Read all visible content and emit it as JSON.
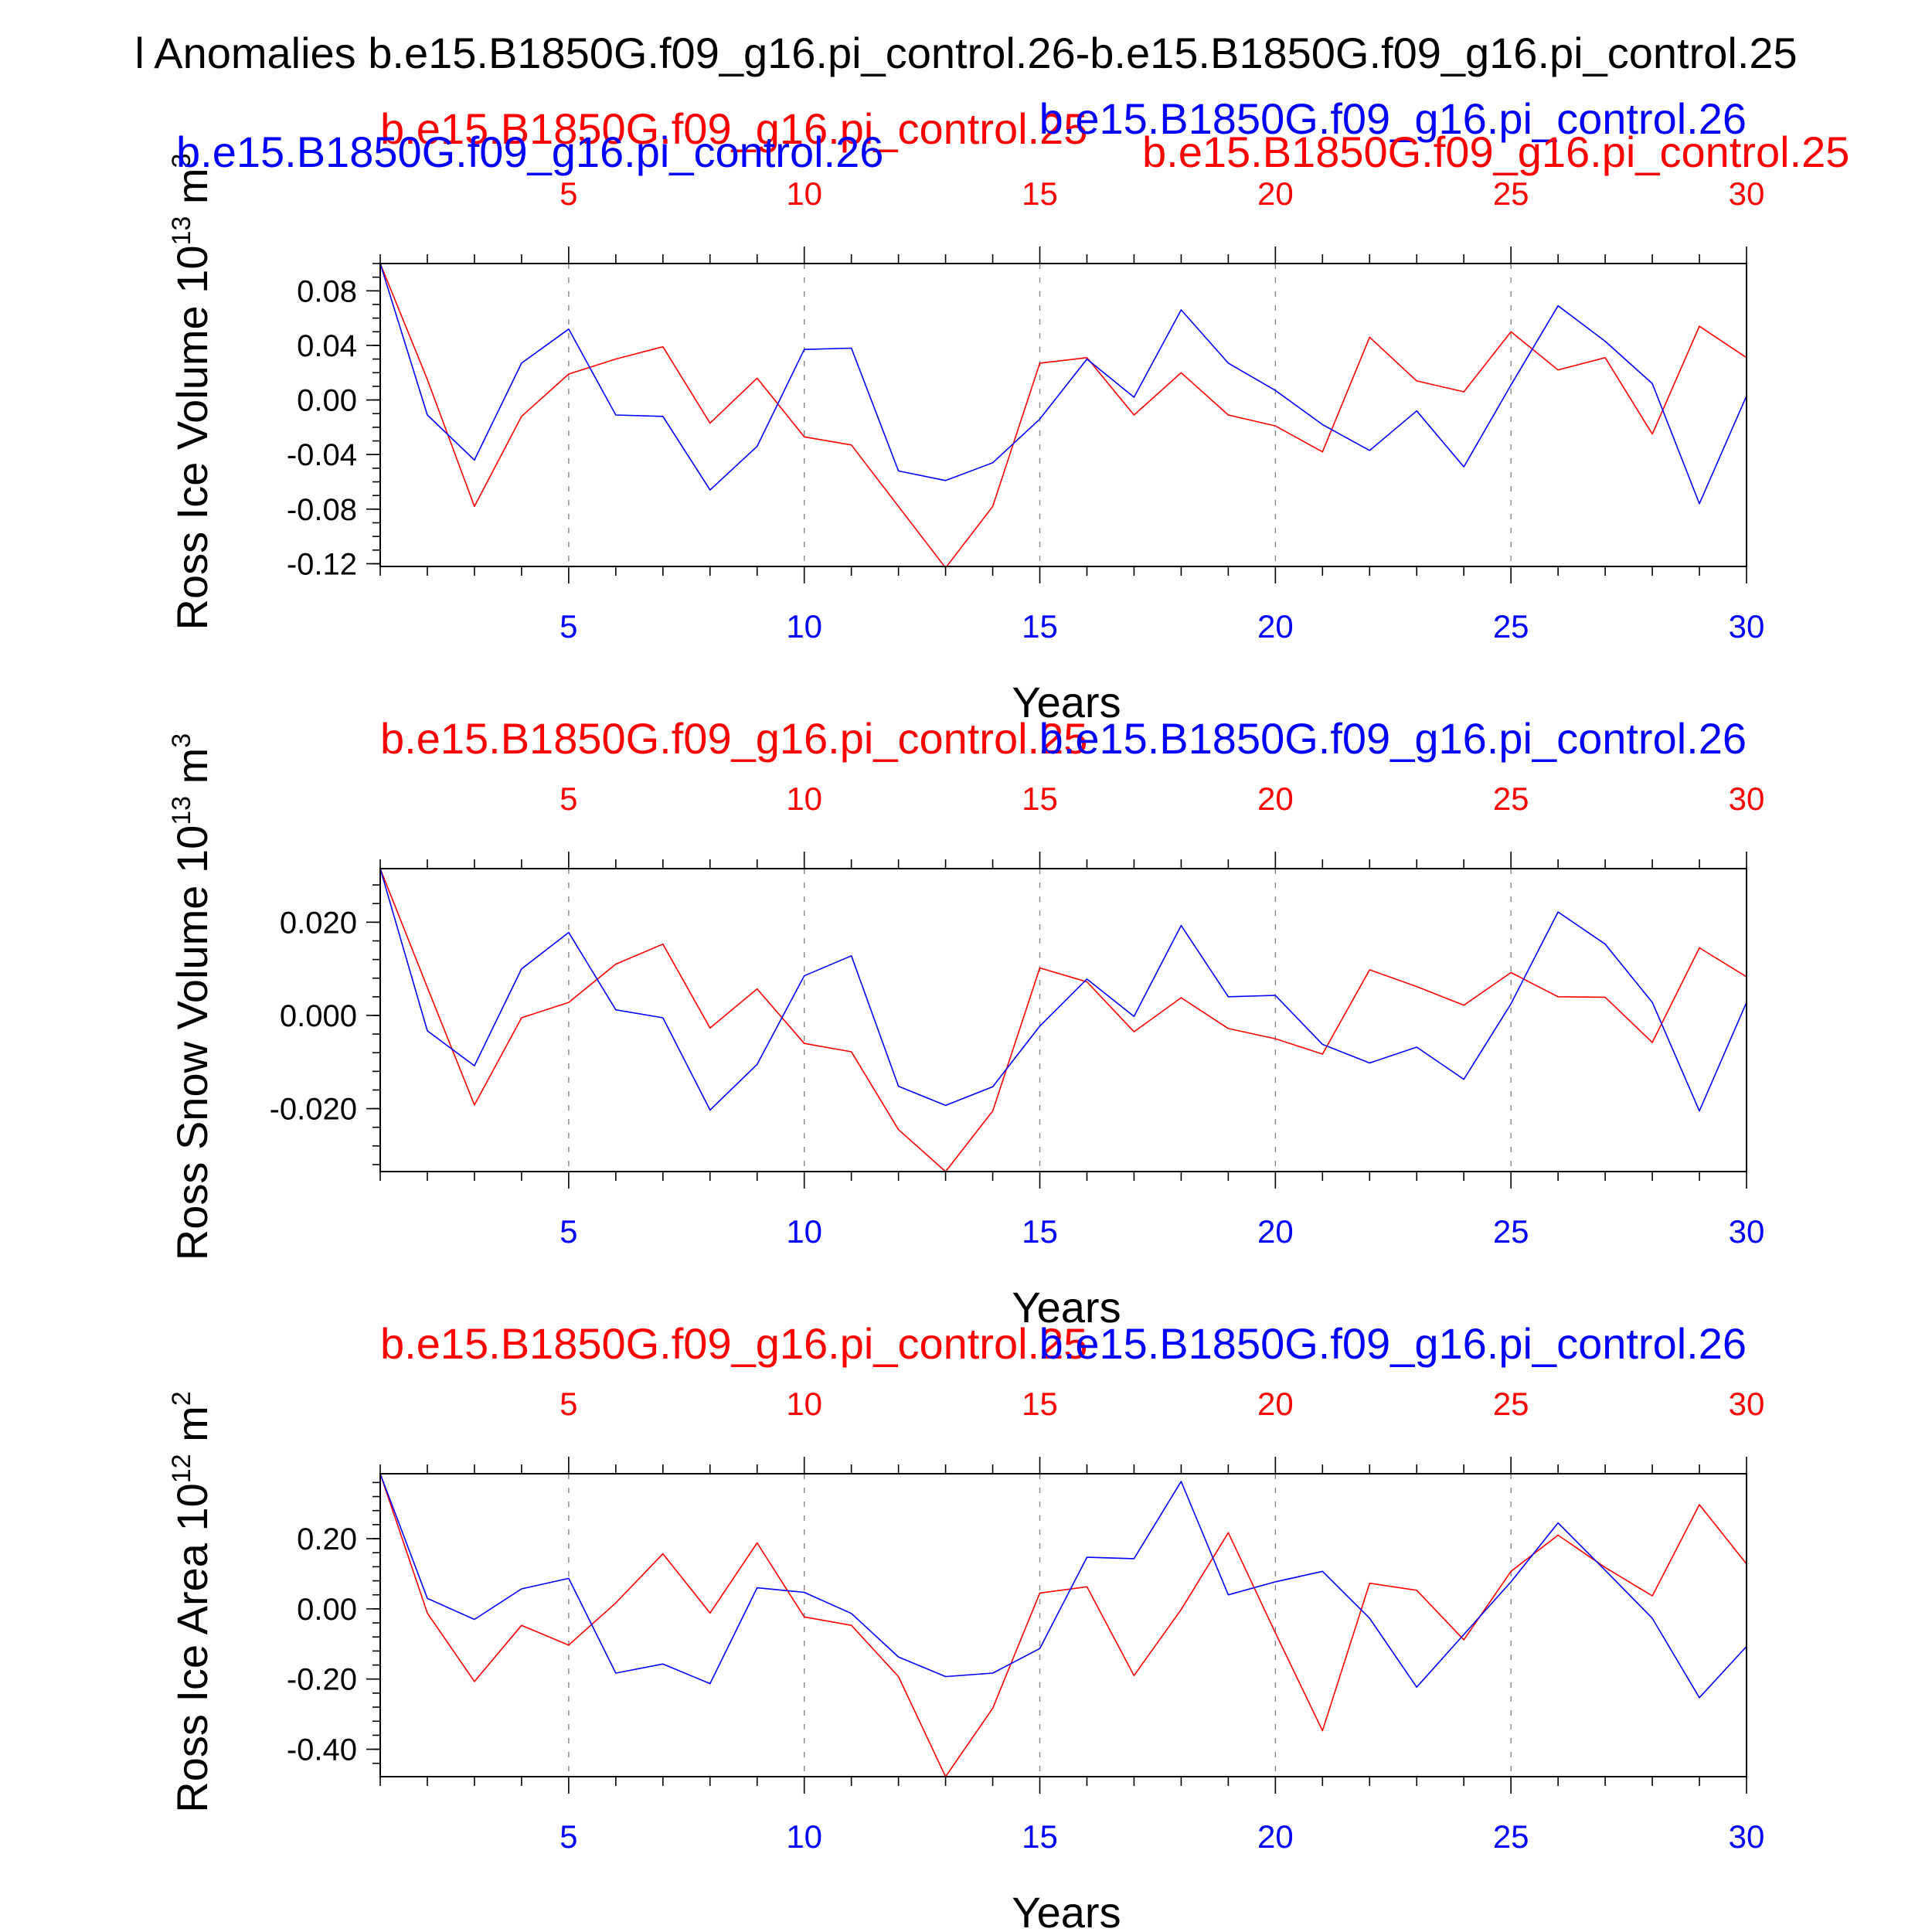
{
  "page_title": "l Anomalies b.e15.B1850G.f09_g16.pi_control.26-b.e15.B1850G.f09_g16.pi_control.25",
  "colors": {
    "run25": "#ff0000",
    "run26": "#0000ff",
    "axis": "#000000",
    "grid": "#888888"
  },
  "chart_data": [
    {
      "type": "line",
      "ylabel": "Ross Ice Volume 10",
      "ylabel_exp": "13",
      "ylabel_unit": " m",
      "ylabel_unit_exp": "3",
      "xlabel": "Years",
      "xlim": [
        1,
        30
      ],
      "ylim": [
        -0.122,
        0.1
      ],
      "yticks": [
        0.08,
        0.04,
        0.0,
        -0.04,
        -0.08,
        -0.12
      ],
      "ytick_labels": [
        "0.08",
        "0.04",
        "0.00",
        "-0.04",
        "-0.08",
        "-0.12"
      ],
      "ytick_minor_step": 0.01,
      "xticks": [
        5,
        10,
        15,
        20,
        25,
        30
      ],
      "xtick_labels": [
        "5",
        "10",
        "15",
        "20",
        "25",
        "30"
      ],
      "grid_x": true,
      "series": [
        {
          "name": "b.e15.B1850G.f09_g16.pi_control.25",
          "color": "#ff0000",
          "x": [
            1,
            2,
            3,
            4,
            5,
            6,
            7,
            8,
            9,
            10,
            11,
            12,
            13,
            14,
            15,
            16,
            17,
            18,
            19,
            20,
            21,
            22,
            23,
            24,
            25,
            26,
            27,
            28,
            29,
            30
          ],
          "values": [
            0.1,
            0.015,
            -0.078,
            -0.012,
            0.019,
            0.03,
            0.039,
            -0.017,
            0.016,
            -0.027,
            -0.033,
            -0.078,
            -0.123,
            -0.078,
            0.027,
            0.031,
            -0.011,
            0.02,
            -0.011,
            -0.019,
            -0.038,
            0.046,
            0.014,
            0.006,
            0.05,
            0.022,
            0.031,
            -0.025,
            0.054,
            0.031
          ]
        },
        {
          "name": "b.e15.B1850G.f09_g16.pi_control.26",
          "color": "#0000ff",
          "x": [
            1,
            2,
            3,
            4,
            5,
            6,
            7,
            8,
            9,
            10,
            11,
            12,
            13,
            14,
            15,
            16,
            17,
            18,
            19,
            20,
            21,
            22,
            23,
            24,
            25,
            26,
            27,
            28,
            29,
            30
          ],
          "values": [
            0.1,
            -0.011,
            -0.044,
            0.027,
            0.052,
            -0.011,
            -0.012,
            -0.066,
            -0.034,
            0.037,
            0.038,
            -0.052,
            -0.059,
            -0.046,
            -0.014,
            0.03,
            0.002,
            0.066,
            0.027,
            0.007,
            -0.018,
            -0.037,
            -0.008,
            -0.049,
            0.011,
            0.069,
            0.043,
            0.012,
            -0.076,
            0.003
          ]
        }
      ]
    },
    {
      "type": "line",
      "ylabel": "Ross Snow Volume 10",
      "ylabel_exp": "13",
      "ylabel_unit": " m",
      "ylabel_unit_exp": "3",
      "xlabel": "Years",
      "xlim": [
        1,
        30
      ],
      "ylim": [
        -0.0335,
        0.0315
      ],
      "yticks": [
        0.02,
        0.0,
        -0.02
      ],
      "ytick_labels": [
        "0.020",
        "0.000",
        "-0.020"
      ],
      "ytick_minor_step": 0.004,
      "xticks": [
        5,
        10,
        15,
        20,
        25,
        30
      ],
      "xtick_labels": [
        "5",
        "10",
        "15",
        "20",
        "25",
        "30"
      ],
      "grid_x": true,
      "series": [
        {
          "name": "b.e15.B1850G.f09_g16.pi_control.25",
          "color": "#ff0000",
          "x": [
            1,
            2,
            3,
            4,
            5,
            6,
            7,
            8,
            9,
            10,
            11,
            12,
            13,
            14,
            15,
            16,
            17,
            18,
            19,
            20,
            21,
            22,
            23,
            24,
            25,
            26,
            27,
            28,
            29,
            30
          ],
          "values": [
            0.0315,
            0.006,
            -0.0192,
            -0.0005,
            0.0028,
            0.011,
            0.0153,
            -0.0027,
            0.0057,
            -0.006,
            -0.0078,
            -0.0245,
            -0.0335,
            -0.0205,
            0.0102,
            0.0072,
            -0.0035,
            0.0038,
            -0.0028,
            -0.005,
            -0.0083,
            0.0098,
            0.0062,
            0.0022,
            0.0092,
            0.004,
            0.0039,
            -0.0058,
            0.0145,
            0.0083
          ]
        },
        {
          "name": "b.e15.B1850G.f09_g16.pi_control.26",
          "color": "#0000ff",
          "x": [
            1,
            2,
            3,
            4,
            5,
            6,
            7,
            8,
            9,
            10,
            11,
            12,
            13,
            14,
            15,
            16,
            17,
            18,
            19,
            20,
            21,
            22,
            23,
            24,
            25,
            26,
            27,
            28,
            29,
            30
          ],
          "values": [
            0.0315,
            -0.0033,
            -0.0108,
            0.01,
            0.0178,
            0.0012,
            -0.0005,
            -0.0203,
            -0.0105,
            0.0085,
            0.0128,
            -0.0152,
            -0.0193,
            -0.0153,
            -0.0023,
            0.0078,
            -0.0002,
            0.0193,
            0.004,
            0.0043,
            -0.0062,
            -0.0102,
            -0.0068,
            -0.0137,
            0.0025,
            0.0222,
            0.0153,
            0.0028,
            -0.0205,
            0.0028
          ]
        }
      ]
    },
    {
      "type": "line",
      "ylabel": "Ross Ice Area 10",
      "ylabel_exp": "12",
      "ylabel_unit": " m",
      "ylabel_unit_exp": "2",
      "xlabel": "Years",
      "xlim": [
        1,
        30
      ],
      "ylim": [
        -0.478,
        0.385
      ],
      "yticks": [
        0.2,
        0.0,
        -0.2,
        -0.4
      ],
      "ytick_labels": [
        "0.20",
        "0.00",
        "-0.20",
        "-0.40"
      ],
      "ytick_minor_step": 0.04,
      "xticks": [
        5,
        10,
        15,
        20,
        25,
        30
      ],
      "xtick_labels": [
        "5",
        "10",
        "15",
        "20",
        "25",
        "30"
      ],
      "grid_x": true,
      "series": [
        {
          "name": "b.e15.B1850G.f09_g16.pi_control.25",
          "color": "#ff0000",
          "x": [
            1,
            2,
            3,
            4,
            5,
            6,
            7,
            8,
            9,
            10,
            11,
            12,
            13,
            14,
            15,
            16,
            17,
            18,
            19,
            20,
            21,
            22,
            23,
            24,
            25,
            26,
            27,
            28,
            29,
            30
          ],
          "values": [
            0.385,
            -0.012,
            -0.207,
            -0.047,
            -0.103,
            0.017,
            0.157,
            -0.012,
            0.188,
            -0.023,
            -0.047,
            -0.193,
            -0.478,
            -0.283,
            0.045,
            0.063,
            -0.19,
            -0.002,
            0.217,
            -0.068,
            -0.347,
            0.073,
            0.053,
            -0.088,
            0.107,
            0.21,
            0.118,
            0.037,
            0.297,
            0.128
          ]
        },
        {
          "name": "b.e15.B1850G.f09_g16.pi_control.26",
          "color": "#0000ff",
          "x": [
            1,
            2,
            3,
            4,
            5,
            6,
            7,
            8,
            9,
            10,
            11,
            12,
            13,
            14,
            15,
            16,
            17,
            18,
            19,
            20,
            21,
            22,
            23,
            24,
            25,
            26,
            27,
            28,
            29,
            30
          ],
          "values": [
            0.385,
            0.03,
            -0.03,
            0.057,
            0.087,
            -0.183,
            -0.157,
            -0.213,
            0.06,
            0.047,
            -0.013,
            -0.137,
            -0.193,
            -0.183,
            -0.113,
            0.147,
            0.143,
            0.363,
            0.04,
            0.077,
            0.107,
            -0.027,
            -0.223,
            -0.073,
            0.077,
            0.245,
            0.11,
            -0.027,
            -0.253,
            -0.107
          ]
        }
      ]
    }
  ]
}
